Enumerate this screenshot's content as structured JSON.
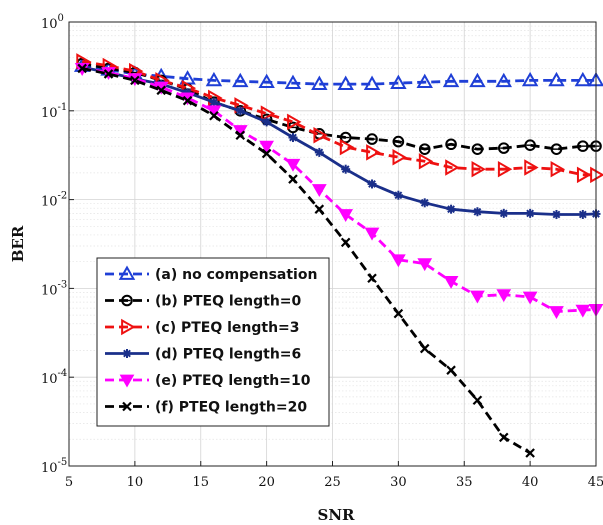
{
  "chart_data": {
    "type": "line",
    "title": "",
    "xlabel": "SNR",
    "ylabel": "BER",
    "xlim": [
      5,
      45
    ],
    "ylim": [
      1e-05,
      1
    ],
    "yscale": "log",
    "grid": true,
    "legend_position": "bottom-left",
    "x_ticks": [
      5,
      10,
      15,
      20,
      25,
      30,
      35,
      40,
      45
    ],
    "y_ticks": [
      {
        "value": 1,
        "base": "10",
        "exp": "0"
      },
      {
        "value": 0.1,
        "base": "10",
        "exp": "-1"
      },
      {
        "value": 0.01,
        "base": "10",
        "exp": "-2"
      },
      {
        "value": 0.001,
        "base": "10",
        "exp": "-3"
      },
      {
        "value": 0.0001,
        "base": "10",
        "exp": "-4"
      },
      {
        "value": 1e-05,
        "base": "10",
        "exp": "-5"
      }
    ],
    "series": [
      {
        "name": "(a) no compensation",
        "color": "#1f3fd6",
        "marker": "triangle-up",
        "x": [
          6,
          8,
          10,
          12,
          14,
          16,
          18,
          20,
          22,
          24,
          26,
          28,
          30,
          32,
          34,
          36,
          38,
          40,
          42,
          44,
          45
        ],
        "values": [
          0.32,
          0.29,
          0.26,
          0.245,
          0.23,
          0.22,
          0.215,
          0.21,
          0.205,
          0.2,
          0.2,
          0.2,
          0.205,
          0.21,
          0.215,
          0.215,
          0.215,
          0.22,
          0.22,
          0.22,
          0.22
        ]
      },
      {
        "name": "(b) PTEQ length=0",
        "color": "#000000",
        "marker": "circle",
        "x": [
          6,
          8,
          10,
          12,
          14,
          16,
          18,
          20,
          22,
          24,
          26,
          28,
          30,
          32,
          34,
          36,
          38,
          40,
          42,
          44,
          45
        ],
        "values": [
          0.34,
          0.3,
          0.27,
          0.22,
          0.175,
          0.125,
          0.1,
          0.08,
          0.065,
          0.055,
          0.05,
          0.048,
          0.045,
          0.037,
          0.042,
          0.037,
          0.038,
          0.041,
          0.037,
          0.04,
          0.04
        ]
      },
      {
        "name": "(c) PTEQ length=3",
        "color": "#ee1111",
        "marker": "triangle-right",
        "x": [
          6,
          8,
          10,
          12,
          14,
          16,
          18,
          20,
          22,
          24,
          26,
          28,
          30,
          32,
          34,
          36,
          38,
          40,
          42,
          44,
          45
        ],
        "values": [
          0.36,
          0.32,
          0.28,
          0.22,
          0.18,
          0.14,
          0.115,
          0.093,
          0.075,
          0.053,
          0.039,
          0.034,
          0.03,
          0.027,
          0.023,
          0.022,
          0.022,
          0.023,
          0.022,
          0.019,
          0.019
        ]
      },
      {
        "name": "(d) PTEQ length=6",
        "color": "#1a2f8a",
        "marker": "asterisk",
        "x": [
          6,
          8,
          10,
          12,
          14,
          16,
          18,
          20,
          22,
          24,
          26,
          28,
          30,
          32,
          34,
          36,
          38,
          40,
          42,
          44,
          45
        ],
        "values": [
          0.31,
          0.27,
          0.23,
          0.2,
          0.16,
          0.125,
          0.1,
          0.075,
          0.05,
          0.034,
          0.022,
          0.015,
          0.0112,
          0.0092,
          0.0078,
          0.0073,
          0.007,
          0.007,
          0.0068,
          0.0068,
          0.0069
        ]
      },
      {
        "name": "(e) PTEQ length=10",
        "color": "#ff00ff",
        "marker": "triangle-down",
        "x": [
          6,
          8,
          10,
          12,
          14,
          16,
          18,
          20,
          22,
          24,
          26,
          28,
          30,
          32,
          34,
          36,
          38,
          40,
          42,
          44,
          45
        ],
        "values": [
          0.3,
          0.27,
          0.23,
          0.185,
          0.14,
          0.1,
          0.06,
          0.04,
          0.025,
          0.013,
          0.0068,
          0.0042,
          0.0021,
          0.0019,
          0.0012,
          0.00082,
          0.00085,
          0.0008,
          0.00055,
          0.00057,
          0.00058
        ]
      },
      {
        "name": "(f) PTEQ length=20",
        "color": "#000000",
        "marker": "x",
        "x": [
          6,
          8,
          10,
          12,
          14,
          16,
          18,
          20,
          22,
          24,
          26,
          28,
          30,
          32,
          34,
          36,
          38,
          40
        ],
        "values": [
          0.3,
          0.26,
          0.22,
          0.17,
          0.13,
          0.088,
          0.053,
          0.033,
          0.017,
          0.0078,
          0.0033,
          0.0013,
          0.00052,
          0.00021,
          0.00012,
          5.5e-05,
          2.1e-05,
          1.4e-05
        ]
      }
    ]
  }
}
